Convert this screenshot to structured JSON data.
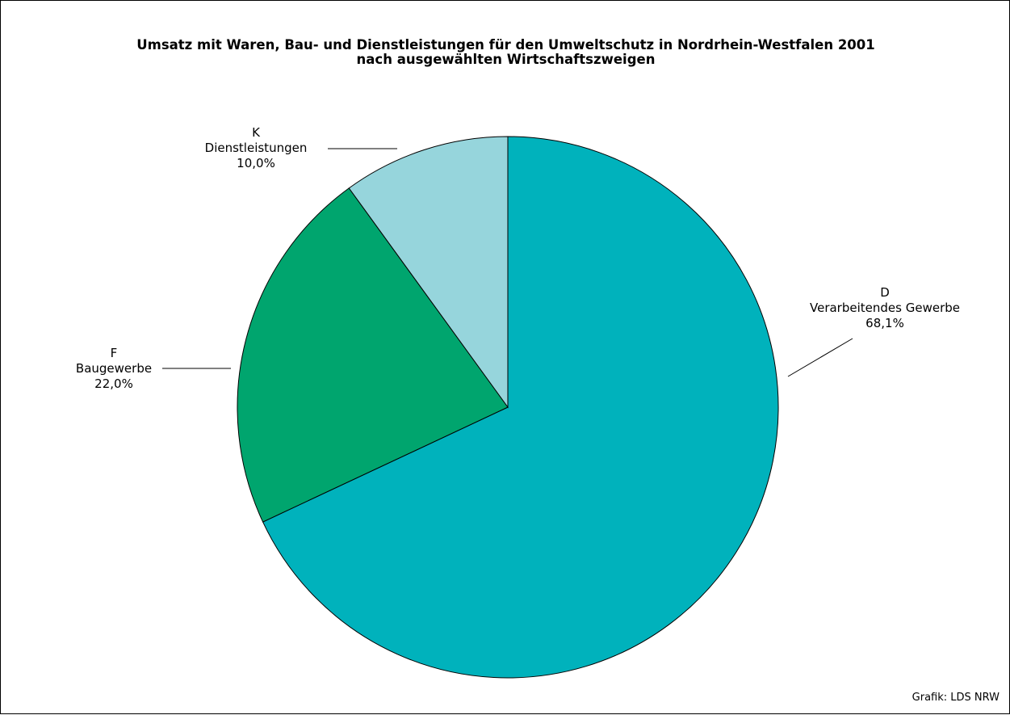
{
  "chart_data": {
    "type": "pie",
    "title": "Umsatz mit Waren, Bau- und Dienstleistungen für den Umweltschutz in Nordrhein-Westfalen 2001",
    "subtitle": "nach ausgewählten Wirtschaftszweigen",
    "slices": [
      {
        "code": "D",
        "label": "Verarbeitendes Gewerbe",
        "value": 68.1,
        "value_label": "68,1%",
        "color": "#00B2BC"
      },
      {
        "code": "F",
        "label": "Baugewerbe",
        "value": 22.0,
        "value_label": "22,0%",
        "color": "#00A56E"
      },
      {
        "code": "K",
        "label": "Dienstleistungen",
        "value": 10.0,
        "value_label": "10,0%",
        "color": "#96D5DC"
      }
    ],
    "start_angle_deg": 0,
    "direction": "clockwise",
    "source": "Grafik: LDS NRW"
  }
}
